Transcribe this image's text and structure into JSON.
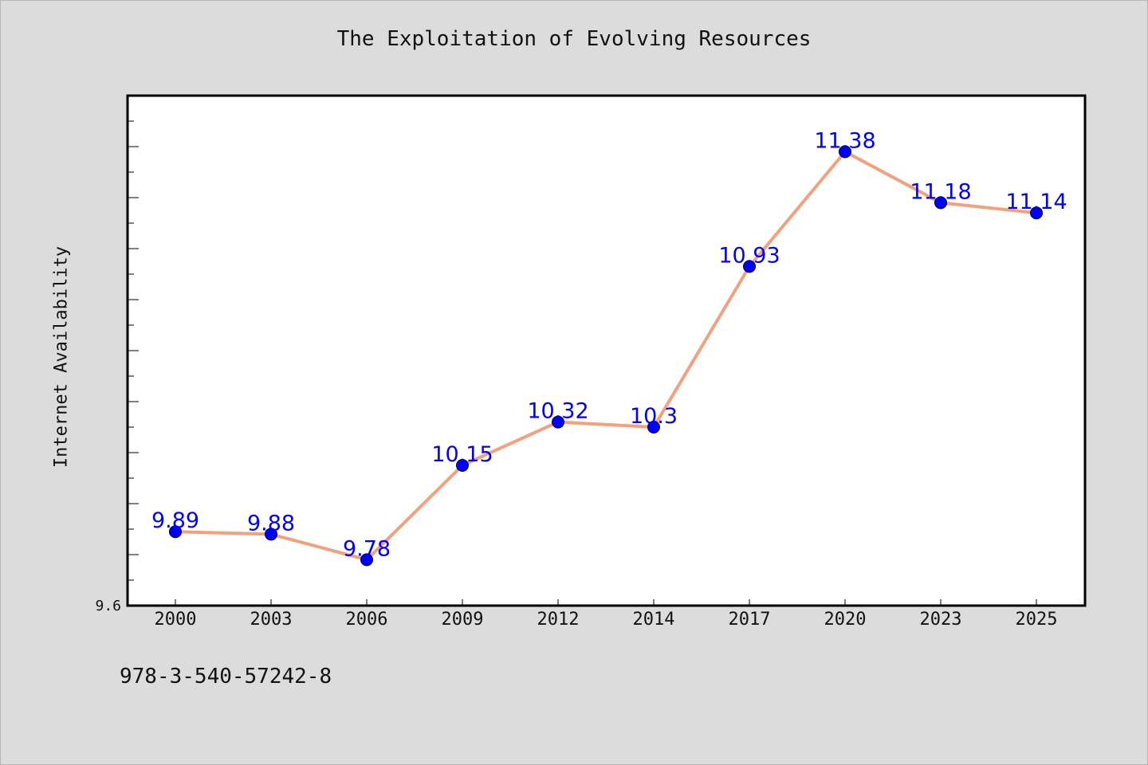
{
  "colors": {
    "background": "#dcdcdc",
    "plot_background": "#ffffff",
    "line": "#f4a07c",
    "marker": "#0000ff",
    "data_label": "#0000ff"
  },
  "footer": {
    "isbn": "978-3-540-57242-8"
  },
  "chart_data": {
    "type": "line",
    "title": "The Exploitation of Evolving Resources",
    "xlabel": "",
    "ylabel": "Internet Availability",
    "categories": [
      "2000",
      "2003",
      "2006",
      "2009",
      "2012",
      "2014",
      "2017",
      "2020",
      "2023",
      "2025"
    ],
    "values": [
      9.89,
      9.88,
      9.78,
      10.15,
      10.32,
      10.3,
      10.93,
      11.38,
      11.18,
      11.14
    ],
    "data_labels": [
      "9.89",
      "9.88",
      "9.78",
      "10.15",
      "10.32",
      "10.3",
      "10.93",
      "11.38",
      "11.18",
      "11.14"
    ],
    "ylim": [
      9.6,
      11.6
    ],
    "y_tick_labels": [
      "9.6"
    ],
    "markers": "circle",
    "grid": false,
    "legend": "none"
  }
}
